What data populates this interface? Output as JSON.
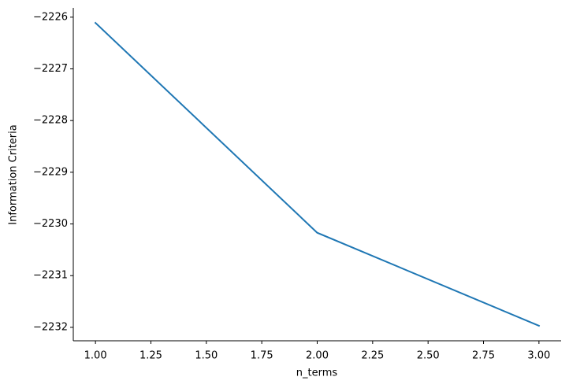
{
  "chart_data": {
    "type": "line",
    "x": [
      1,
      2,
      3
    ],
    "series": [
      {
        "name": "Information Criteria",
        "color": "#1f77b4",
        "values": [
          -2226.11,
          -2230.17,
          -2231.97
        ]
      }
    ],
    "xlabel": "n_terms",
    "ylabel": "Information Criteria",
    "xlim": [
      0.9,
      3.1
    ],
    "ylim": [
      -2232.26,
      -2225.82
    ],
    "xticks": [
      {
        "value": 1,
        "label": "1.00"
      },
      {
        "value": 1.25,
        "label": "1.25"
      },
      {
        "value": 1.5,
        "label": "1.50"
      },
      {
        "value": 1.75,
        "label": "1.75"
      },
      {
        "value": 2,
        "label": "2.00"
      },
      {
        "value": 2.25,
        "label": "2.25"
      },
      {
        "value": 2.5,
        "label": "2.50"
      },
      {
        "value": 2.75,
        "label": "2.75"
      },
      {
        "value": 3,
        "label": "3.00"
      }
    ],
    "yticks": [
      {
        "value": -2226,
        "label": "−2226"
      },
      {
        "value": -2227,
        "label": "−2227"
      },
      {
        "value": -2228,
        "label": "−2228"
      },
      {
        "value": -2229,
        "label": "−2229"
      },
      {
        "value": -2230,
        "label": "−2230"
      },
      {
        "value": -2231,
        "label": "−2231"
      },
      {
        "value": -2232,
        "label": "−2232"
      }
    ],
    "grid": false
  }
}
